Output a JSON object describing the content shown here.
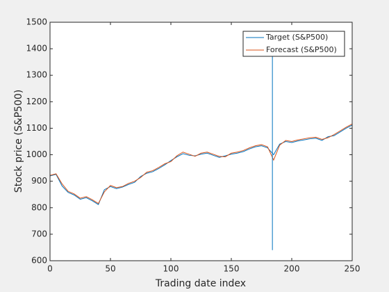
{
  "chart_data": {
    "type": "line",
    "xlabel": "Trading date index",
    "ylabel": "Stock price (S&P500)",
    "x": [
      0,
      5,
      10,
      15,
      20,
      25,
      30,
      35,
      40,
      45,
      50,
      55,
      60,
      65,
      70,
      75,
      80,
      85,
      90,
      95,
      100,
      105,
      110,
      115,
      120,
      125,
      130,
      135,
      140,
      145,
      150,
      155,
      160,
      165,
      170,
      175,
      180,
      185,
      190,
      195,
      200,
      205,
      210,
      215,
      220,
      225,
      230,
      235,
      240,
      245,
      250
    ],
    "series": [
      {
        "name": "Target (S&P500)",
        "color": "#0072BD",
        "values": [
          920,
          926,
          882,
          858,
          848,
          832,
          838,
          826,
          812,
          868,
          880,
          872,
          878,
          888,
          896,
          918,
          930,
          936,
          948,
          962,
          978,
          992,
          1004,
          998,
          996,
          1002,
          1006,
          998,
          990,
          996,
          1002,
          1006,
          1012,
          1022,
          1030,
          1034,
          1026,
          1000,
          1040,
          1050,
          1046,
          1052,
          1056,
          1060,
          1062,
          1054,
          1068,
          1072,
          1086,
          1100,
          1112
        ]
      },
      {
        "name": "Forecast (S&P500)",
        "color": "#D95319",
        "values": [
          922,
          928,
          890,
          862,
          852,
          836,
          842,
          830,
          816,
          860,
          884,
          876,
          880,
          892,
          900,
          914,
          934,
          940,
          952,
          966,
          974,
          996,
          1010,
          1002,
          994,
          1006,
          1010,
          1002,
          994,
          992,
          1006,
          1010,
          1016,
          1026,
          1034,
          1038,
          1030,
          980,
          1036,
          1054,
          1050,
          1056,
          1060,
          1064,
          1066,
          1058,
          1064,
          1076,
          1090,
          1104,
          1116
        ]
      }
    ],
    "vertical_line": {
      "x": 184,
      "y": [
        640,
        1400
      ],
      "color": "#0072BD"
    },
    "xlim": [
      0,
      250
    ],
    "xticks": [
      0,
      50,
      100,
      150,
      200,
      250
    ],
    "ylim": [
      600,
      1500
    ],
    "yticks": [
      600,
      700,
      800,
      900,
      1000,
      1100,
      1200,
      1300,
      1400,
      1500
    ],
    "legend": "upper right"
  }
}
